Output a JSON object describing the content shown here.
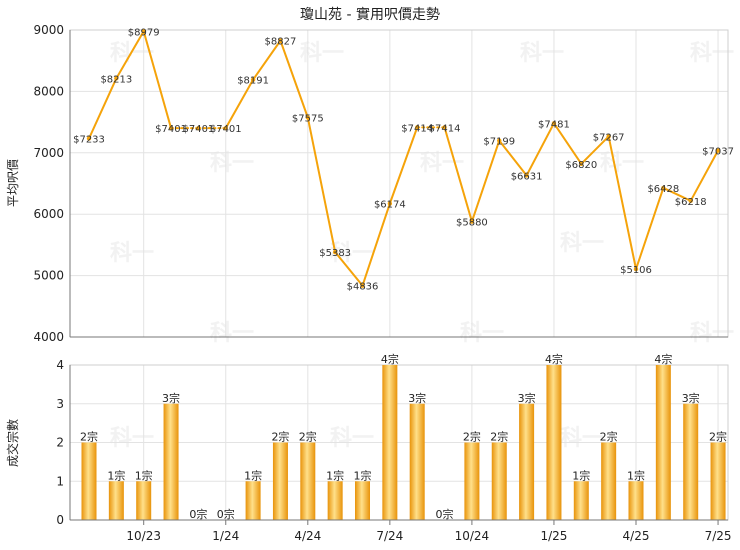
{
  "chart_data": [
    {
      "type": "line",
      "title": "瓊山苑 - 實用呎價走勢",
      "ylabel": "平均呎價",
      "ylim": [
        4000,
        9000
      ],
      "yticks": [
        4000,
        5000,
        6000,
        7000,
        8000,
        9000
      ],
      "color": "#F5A30A",
      "points": [
        {
          "value": 7233,
          "label": "$7233"
        },
        {
          "value": 8213,
          "label": "$8213"
        },
        {
          "value": 8979,
          "label": "$8979"
        },
        {
          "value": 7401,
          "label": "$7401"
        },
        {
          "value": 7401,
          "label": "$7401"
        },
        {
          "value": 7401,
          "label": "$7401"
        },
        {
          "value": 8191,
          "label": "$8191"
        },
        {
          "value": 8827,
          "label": "$8827"
        },
        {
          "value": 7575,
          "label": "$7575"
        },
        {
          "value": 5383,
          "label": "$5383"
        },
        {
          "value": 4836,
          "label": "$4836"
        },
        {
          "value": 6174,
          "label": "$6174"
        },
        {
          "value": 7414,
          "label": "$7414"
        },
        {
          "value": 7414,
          "label": "$7414"
        },
        {
          "value": 5880,
          "label": "$5880"
        },
        {
          "value": 7199,
          "label": "$7199"
        },
        {
          "value": 6631,
          "label": "$6631"
        },
        {
          "value": 7481,
          "label": "$7481"
        },
        {
          "value": 6820,
          "label": "$6820"
        },
        {
          "value": 7267,
          "label": "$7267"
        },
        {
          "value": 5106,
          "label": "$5106"
        },
        {
          "value": 6428,
          "label": "$6428"
        },
        {
          "value": 6218,
          "label": "$6218"
        },
        {
          "value": 7037,
          "label": "$7037"
        }
      ],
      "dotted_segments": [
        [
          3,
          5
        ],
        [
          12,
          13
        ]
      ]
    },
    {
      "type": "bar",
      "ylabel": "成交宗數",
      "ylim": [
        0,
        4
      ],
      "yticks": [
        0,
        1,
        2,
        3,
        4
      ],
      "values": [
        2,
        1,
        1,
        3,
        0,
        0,
        1,
        2,
        2,
        1,
        1,
        4,
        3,
        0,
        2,
        2,
        3,
        4,
        1,
        2,
        1,
        4,
        3,
        2
      ],
      "labels": [
        "2宗",
        "1宗",
        "1宗",
        "3宗",
        "0宗",
        "0宗",
        "1宗",
        "2宗",
        "2宗",
        "1宗",
        "1宗",
        "4宗",
        "3宗",
        "0宗",
        "2宗",
        "2宗",
        "3宗",
        "4宗",
        "1宗",
        "2宗",
        "1宗",
        "4宗",
        "3宗",
        "2宗"
      ],
      "x_ticks": [
        {
          "index": 2,
          "label": "10/23"
        },
        {
          "index": 5,
          "label": "1/24"
        },
        {
          "index": 8,
          "label": "4/24"
        },
        {
          "index": 11,
          "label": "7/24"
        },
        {
          "index": 14,
          "label": "10/24"
        },
        {
          "index": 17,
          "label": "1/25"
        },
        {
          "index": 20,
          "label": "4/25"
        },
        {
          "index": 23,
          "label": "7/25"
        }
      ]
    }
  ],
  "watermark": "科一"
}
